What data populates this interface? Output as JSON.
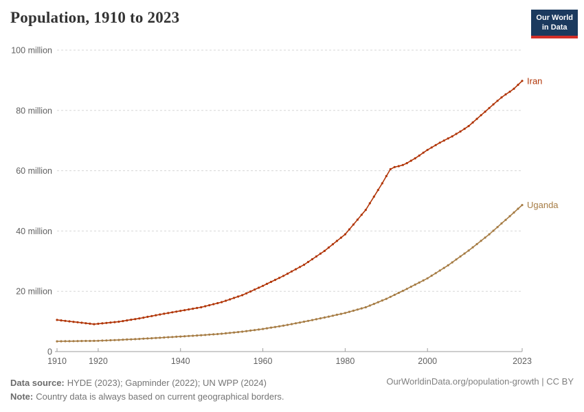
{
  "header": {
    "title": "Population, 1910 to 2023",
    "logo": {
      "line1": "Our World",
      "line2": "in Data",
      "bg_color": "#1b3a5e",
      "accent_color": "#d22e27"
    }
  },
  "chart_data": {
    "type": "line",
    "title": "Population, 1910 to 2023",
    "xlabel": "",
    "ylabel": "",
    "unit": "million people",
    "xlim": [
      1910,
      2023
    ],
    "ylim": [
      0,
      100
    ],
    "grid": "dashed-horizontal",
    "legend": "end-of-line-labels",
    "xticks": [
      1910,
      1920,
      1940,
      1960,
      1980,
      2000,
      2023
    ],
    "yticks": [
      {
        "value": 0,
        "label": "0"
      },
      {
        "value": 20,
        "label": "20 million"
      },
      {
        "value": 40,
        "label": "40 million"
      },
      {
        "value": 60,
        "label": "60 million"
      },
      {
        "value": 80,
        "label": "80 million"
      },
      {
        "value": 100,
        "label": "100 million"
      }
    ],
    "x": [
      1910,
      1911,
      1912,
      1913,
      1914,
      1915,
      1916,
      1917,
      1918,
      1919,
      1920,
      1921,
      1922,
      1923,
      1924,
      1925,
      1926,
      1927,
      1928,
      1929,
      1930,
      1931,
      1932,
      1933,
      1934,
      1935,
      1936,
      1937,
      1938,
      1939,
      1940,
      1941,
      1942,
      1943,
      1944,
      1945,
      1946,
      1947,
      1948,
      1949,
      1950,
      1951,
      1952,
      1953,
      1954,
      1955,
      1956,
      1957,
      1958,
      1959,
      1960,
      1961,
      1962,
      1963,
      1964,
      1965,
      1966,
      1967,
      1968,
      1969,
      1970,
      1971,
      1972,
      1973,
      1974,
      1975,
      1976,
      1977,
      1978,
      1979,
      1980,
      1981,
      1982,
      1983,
      1984,
      1985,
      1986,
      1987,
      1988,
      1989,
      1990,
      1991,
      1992,
      1993,
      1994,
      1995,
      1996,
      1997,
      1998,
      1999,
      2000,
      2001,
      2002,
      2003,
      2004,
      2005,
      2006,
      2007,
      2008,
      2009,
      2010,
      2011,
      2012,
      2013,
      2014,
      2015,
      2016,
      2017,
      2018,
      2019,
      2020,
      2021,
      2022,
      2023
    ],
    "series": [
      {
        "name": "Iran",
        "color": "#b13507",
        "values_millions": [
          10.49,
          10.34,
          10.18,
          10.03,
          9.87,
          9.72,
          9.56,
          9.41,
          9.25,
          9.1,
          9.23,
          9.37,
          9.5,
          9.63,
          9.77,
          9.9,
          10.12,
          10.34,
          10.56,
          10.78,
          11.0,
          11.26,
          11.52,
          11.78,
          12.04,
          12.3,
          12.54,
          12.78,
          13.02,
          13.26,
          13.5,
          13.74,
          13.98,
          14.22,
          14.46,
          14.7,
          15.04,
          15.38,
          15.72,
          16.06,
          16.4,
          16.86,
          17.32,
          17.78,
          18.24,
          18.7,
          19.32,
          19.94,
          20.56,
          21.18,
          21.8,
          22.46,
          23.12,
          23.78,
          24.44,
          25.1,
          25.84,
          26.58,
          27.32,
          28.06,
          28.8,
          29.72,
          30.64,
          31.56,
          32.48,
          33.4,
          34.5,
          35.6,
          36.7,
          37.8,
          38.9,
          40.52,
          42.14,
          43.76,
          45.38,
          47.0,
          49.2,
          51.4,
          53.6,
          55.8,
          58.2,
          60.5,
          61.2,
          61.5,
          61.9,
          62.5,
          63.3,
          64.1,
          65.0,
          66.0,
          66.9,
          67.7,
          68.5,
          69.3,
          70.0,
          70.7,
          71.4,
          72.2,
          73.0,
          73.9,
          74.8,
          76.0,
          77.2,
          78.4,
          79.6,
          80.8,
          82.0,
          83.2,
          84.3,
          85.3,
          86.2,
          87.2,
          88.5,
          89.8
        ]
      },
      {
        "name": "Uganda",
        "color": "#a67c44",
        "values_millions": [
          3.4,
          3.42,
          3.44,
          3.45,
          3.47,
          3.49,
          3.51,
          3.53,
          3.54,
          3.56,
          3.58,
          3.64,
          3.69,
          3.75,
          3.8,
          3.86,
          3.93,
          4.0,
          4.06,
          4.13,
          4.2,
          4.28,
          4.35,
          4.43,
          4.5,
          4.58,
          4.66,
          4.75,
          4.83,
          4.92,
          5.0,
          5.08,
          5.17,
          5.25,
          5.34,
          5.42,
          5.52,
          5.62,
          5.72,
          5.82,
          5.92,
          6.06,
          6.19,
          6.33,
          6.46,
          6.6,
          6.78,
          6.96,
          7.14,
          7.32,
          7.5,
          7.72,
          7.94,
          8.16,
          8.38,
          8.6,
          8.86,
          9.12,
          9.38,
          9.64,
          9.9,
          10.18,
          10.46,
          10.74,
          11.02,
          11.3,
          11.6,
          11.9,
          12.2,
          12.5,
          12.8,
          13.18,
          13.56,
          13.94,
          14.32,
          14.7,
          15.26,
          15.82,
          16.38,
          16.94,
          17.5,
          18.16,
          18.82,
          19.48,
          20.14,
          20.8,
          21.5,
          22.2,
          22.9,
          23.6,
          24.3,
          25.16,
          26.02,
          26.88,
          27.74,
          28.6,
          29.58,
          30.56,
          31.54,
          32.52,
          33.5,
          34.58,
          35.66,
          36.74,
          37.82,
          38.9,
          40.1,
          41.3,
          42.5,
          43.7,
          44.9,
          46.13,
          47.37,
          48.6
        ]
      }
    ]
  },
  "footer": {
    "data_source_label": "Data source:",
    "data_source": "HYDE (2023); Gapminder (2022); UN WPP (2024)",
    "note_label": "Note:",
    "note": "Country data is always based on current geographical borders.",
    "credit": "OurWorldinData.org/population-growth | CC BY"
  }
}
